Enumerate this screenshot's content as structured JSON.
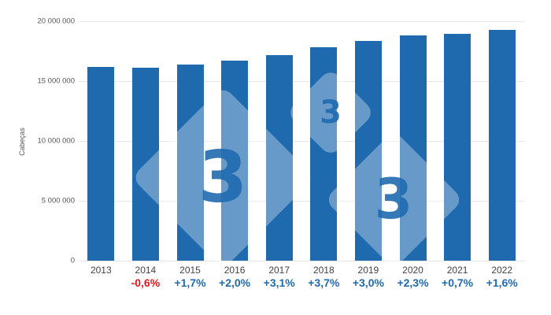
{
  "chart_data": {
    "type": "bar",
    "title": "",
    "xlabel": "",
    "ylabel": "Cabeças",
    "ylim": [
      0,
      20000000
    ],
    "grid": true,
    "legend": null,
    "y_ticks": [
      "0",
      "5 000 000",
      "10 000 000",
      "15 000 000",
      "20 000 000"
    ],
    "categories": [
      "2013",
      "2014",
      "2015",
      "2016",
      "2017",
      "2018",
      "2019",
      "2020",
      "2021",
      "2022"
    ],
    "values": [
      16200000,
      16100000,
      16400000,
      16700000,
      17200000,
      17800000,
      18350000,
      18800000,
      18950000,
      19250000
    ],
    "annotations": [
      "",
      "-0,6%",
      "+1,7%",
      "+2,0%",
      "+3,1%",
      "+3,7%",
      "+3,0%",
      "+2,3%",
      "+0,7%",
      "+1,6%"
    ],
    "colors": {
      "bar": "#1f6aaf",
      "positive": "#1f6aaf",
      "negative": "#e0191b"
    }
  },
  "watermark": {
    "glyph": "3"
  }
}
